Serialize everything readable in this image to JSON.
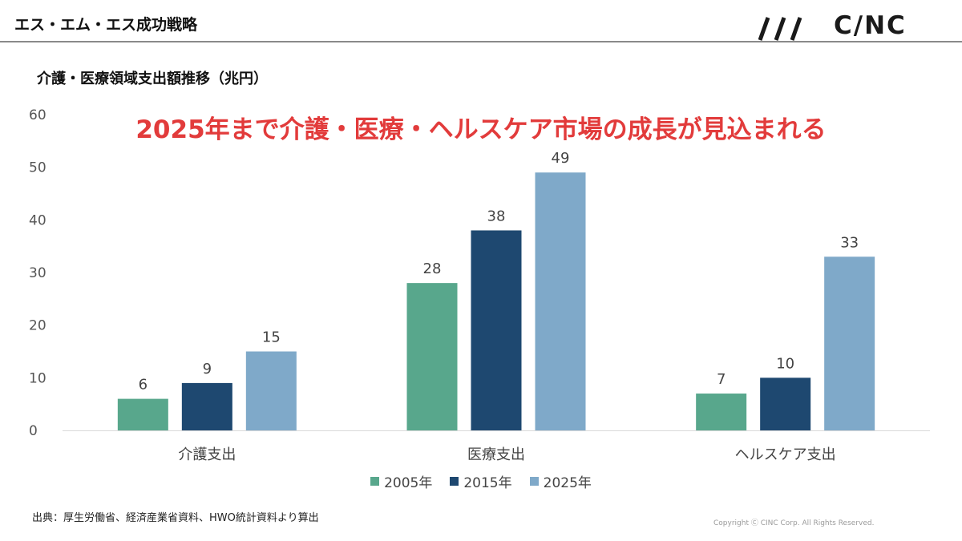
{
  "header": {
    "title": "エス・エム・エス成功戦略",
    "logo_text": "C/NC"
  },
  "chart_subtitle": "介護・医療領域支出額推移（兆円）",
  "headline": "2025年まで介護・医療・ヘルスケア市場の成長が見込まれる",
  "chart_data": {
    "type": "bar",
    "categories": [
      "介護支出",
      "医療支出",
      "ヘルスケア支出"
    ],
    "series": [
      {
        "name": "2005年",
        "color": "#58a78c",
        "values": [
          6,
          28,
          7
        ]
      },
      {
        "name": "2015年",
        "color": "#1e4870",
        "values": [
          9,
          38,
          10
        ]
      },
      {
        "name": "2025年",
        "color": "#7fa9c9",
        "values": [
          15,
          49,
          33
        ]
      }
    ],
    "ylim": [
      0,
      60
    ],
    "yticks": [
      0,
      10,
      20,
      30,
      40,
      50,
      60
    ],
    "grid": false,
    "legend_position": "bottom"
  },
  "footer": {
    "source": "出典：厚生労働省、経済産業省資料、HWO統計資料より算出",
    "copyright": "Copyright Ⓒ CINC Corp. All Rights Reserved."
  }
}
